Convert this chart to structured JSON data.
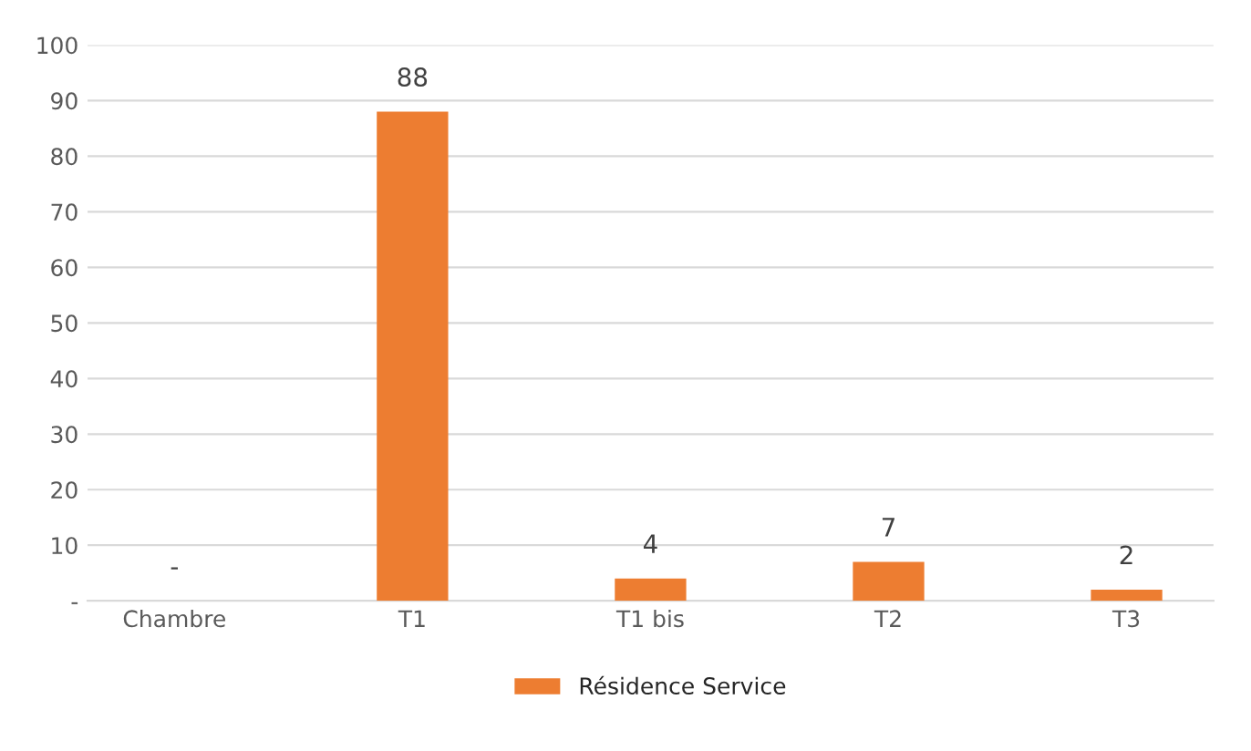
{
  "chart_data": {
    "type": "bar",
    "categories": [
      "Chambre",
      "T1",
      "T1 bis",
      "T2",
      "T3"
    ],
    "series": [
      {
        "name": "Résidence Service",
        "color": "#ed7d31",
        "values": [
          0,
          88,
          4,
          7,
          2
        ]
      }
    ],
    "value_labels": [
      "-",
      "88",
      "4",
      "7",
      "2"
    ],
    "ylim": [
      0,
      100
    ],
    "yticks": [
      {
        "value": 0,
        "label": "-"
      },
      10,
      20,
      30,
      40,
      50,
      60,
      70,
      80,
      90,
      100
    ],
    "grid": "y",
    "legend": "bottom"
  }
}
